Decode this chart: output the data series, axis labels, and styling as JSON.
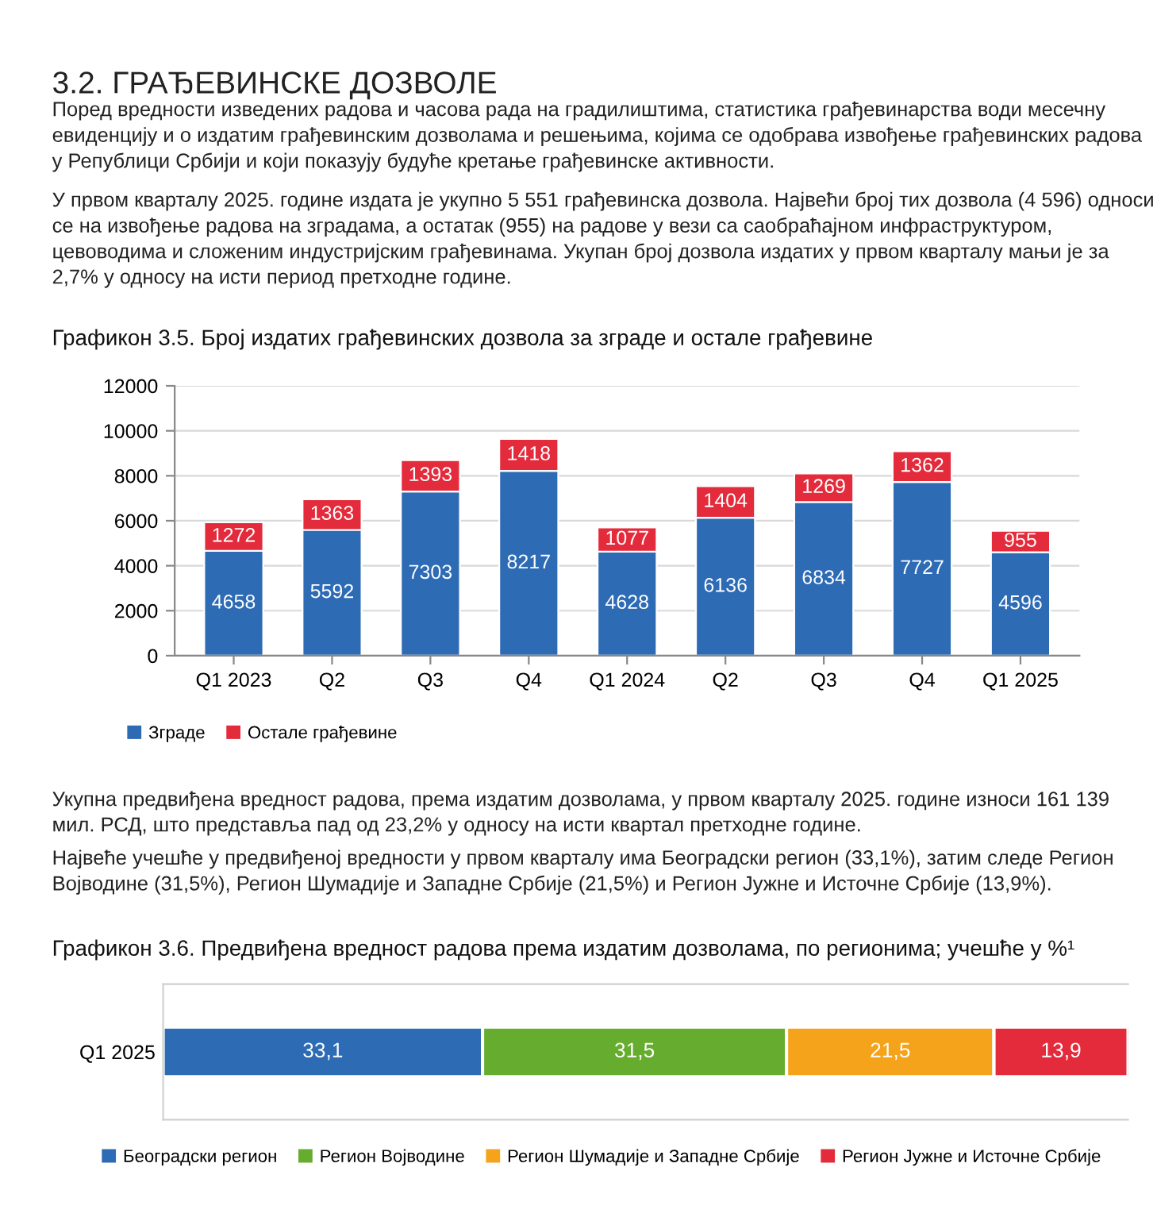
{
  "chart_data": [
    {
      "type": "bar",
      "title": "Графикон 3.5. Број издатих грађевинских дозвола за зграде и остале грађевине",
      "annotations": [
        "3.2. ГРАЂЕВИНСКЕ ДОЗВОЛЕ",
        "Поред вредности изведених радова и часова рада на градилиштима, статистика грађевинарства води месечну евиденцију и о издатим грађевинским дозволама и решењима, којима се одобрава извођење грађевинских радова у Републици Србији и који показују будуће кретање грађевинске активности.",
        "У првом кварталу 2025. године издата је укупно 5 551 грађевинска дозвола. Највећи број тих дозвола (4 596) односи се на извођење радова на зградама, а остатак (955) на радове у вези са саобраћајном инфраструктуром, цевоводима и сложеним индустријским грађевинама. Укупан број дозвола издатих у првом кварталу мањи је за 2,7% у односу на исти период претходне године."
      ],
      "categories": [
        "Q1 2023",
        "Q2",
        "Q3",
        "Q4",
        "Q1 2024",
        "Q2",
        "Q3",
        "Q4",
        "Q1 2025"
      ],
      "stacked": true,
      "series": [
        {
          "name": "Зграде",
          "color": "#2e6bb5",
          "values": [
            4658,
            5592,
            7303,
            8217,
            4628,
            6136,
            6834,
            7727,
            4596
          ]
        },
        {
          "name": "Остале грађевине",
          "color": "#e32b3c",
          "values": [
            1272,
            1363,
            1393,
            1418,
            1077,
            1404,
            1269,
            1362,
            955
          ]
        }
      ],
      "ylim": [
        0,
        12000
      ],
      "yticks": [
        0,
        2000,
        4000,
        6000,
        8000,
        10000,
        12000
      ],
      "grid": "y",
      "legend": "bottom left",
      "data_labels": true
    },
    {
      "type": "bar",
      "orientation": "horizontal",
      "stacked": true,
      "title": "Графикон 3.6. Предвиђена вредност радова према издатим дозволама, по регионима; учешће у %¹",
      "annotations": [
        "Укупна предвиђена вредност радова, према издатим дозволама, у првом кварталу 2025. године износи 161 139 мил. РСД, што представља пад од 23,2% у односу на исти квартал претходне године.",
        "Највеће учешће у предвиђеној вредности у првом кварталу има Београдски регион (33,1%), затим следе Регион Војводине (31,5%), Регион Шумадије и Западне Србије (21,5%) и Регион Јужне и Источне Србије (13,9%)."
      ],
      "categories": [
        "Q1 2025"
      ],
      "series": [
        {
          "name": "Београдски регион",
          "color": "#2e6bb5",
          "values": [
            33.1
          ],
          "value_labels": [
            "33,1"
          ]
        },
        {
          "name": "Регион Војводине",
          "color": "#66ac2f",
          "values": [
            31.5
          ],
          "value_labels": [
            "31,5"
          ]
        },
        {
          "name": "Регион Шумадије и Западне Србије",
          "color": "#f5a31a",
          "values": [
            21.5
          ],
          "value_labels": [
            "21,5"
          ]
        },
        {
          "name": "Регион Јужне и Источне Србије",
          "color": "#e32b3c",
          "values": [
            13.9
          ],
          "value_labels": [
            "13,9"
          ]
        }
      ],
      "legend": "bottom left"
    }
  ]
}
